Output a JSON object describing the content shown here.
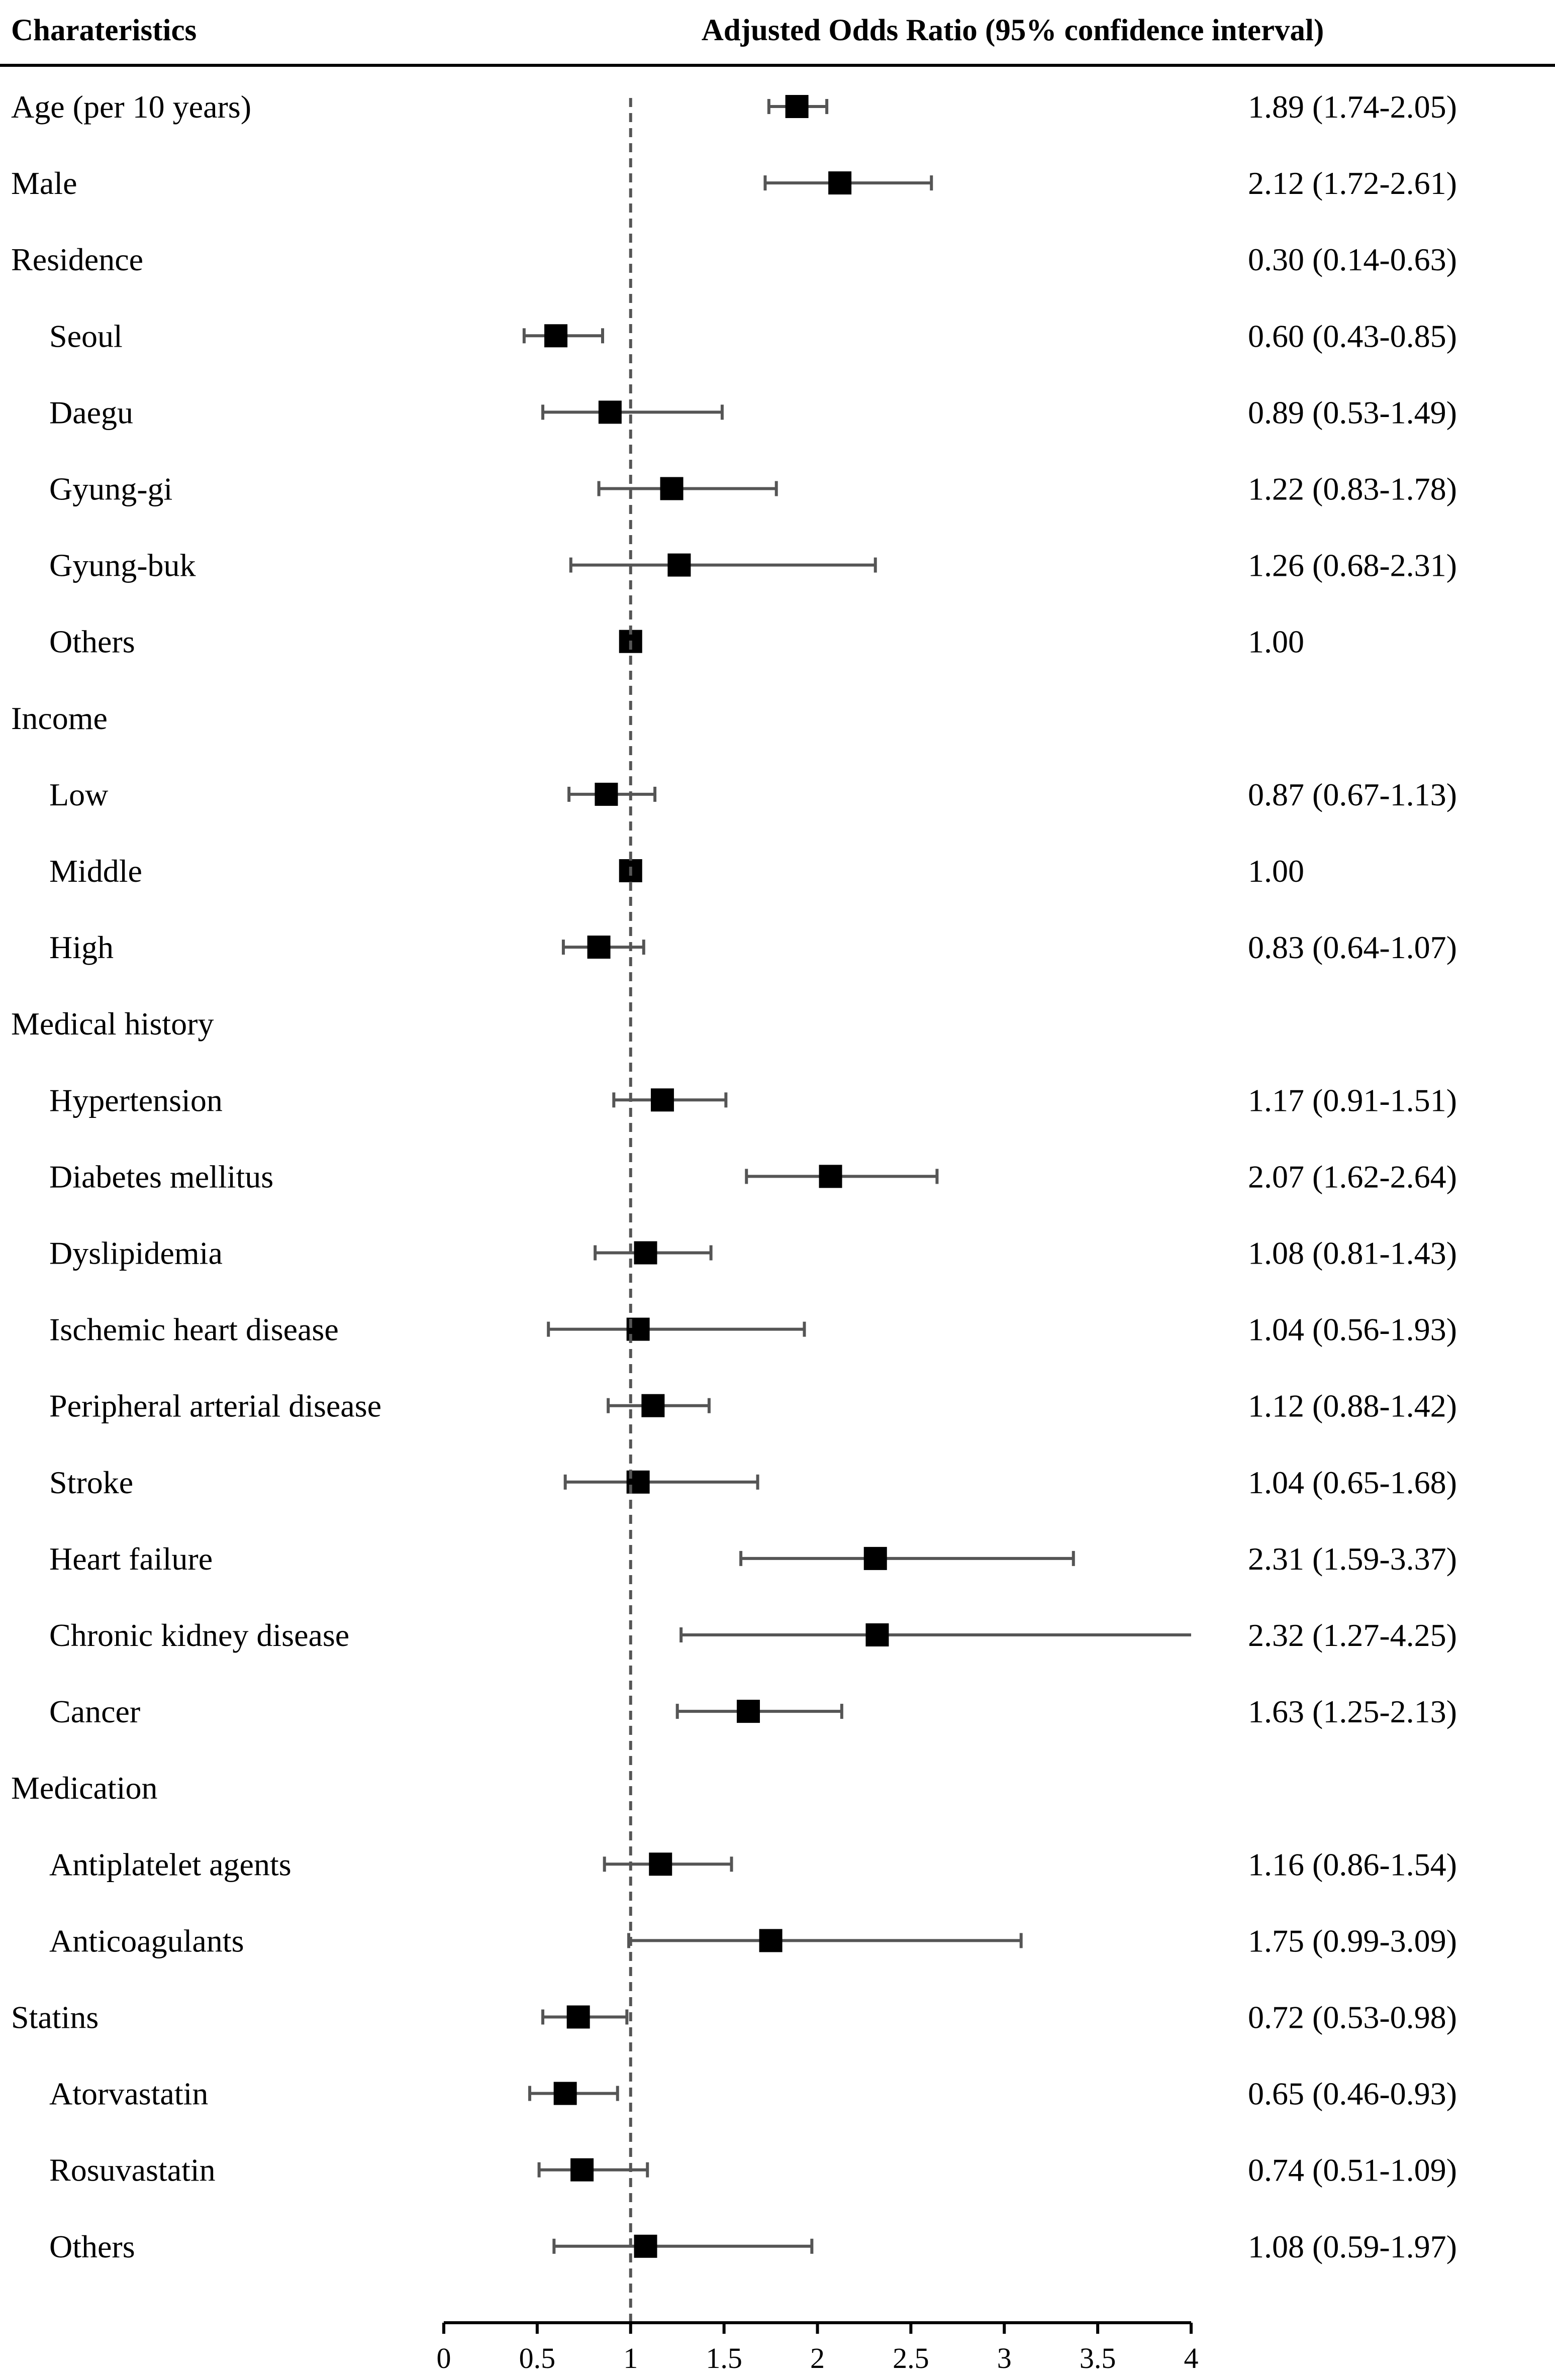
{
  "chart_data": {
    "type": "forest",
    "header": {
      "characteristics": "Charateristics",
      "ratio": "Adjusted Odds Ratio (95% confidence interval)"
    },
    "reference_value": 1,
    "xlim": [
      0,
      4
    ],
    "xticks": [
      "0",
      "0.5",
      "1",
      "1.5",
      "2",
      "2.5",
      "3",
      "3.5",
      "4"
    ],
    "rows": [
      {
        "label": "Age (per 10 years)",
        "indent": 0,
        "or": 1.89,
        "lo": 1.74,
        "hi": 2.05,
        "text": "1.89 (1.74-2.05)"
      },
      {
        "label": "Male",
        "indent": 0,
        "or": 2.12,
        "lo": 1.72,
        "hi": 2.61,
        "text": "2.12 (1.72-2.61)"
      },
      {
        "label": "Residence",
        "indent": 0,
        "or": null,
        "lo": null,
        "hi": null,
        "text": "0.30 (0.14-0.63)"
      },
      {
        "label": "Seoul",
        "indent": 1,
        "or": 0.6,
        "lo": 0.43,
        "hi": 0.85,
        "text": "0.60 (0.43-0.85)"
      },
      {
        "label": "Daegu",
        "indent": 1,
        "or": 0.89,
        "lo": 0.53,
        "hi": 1.49,
        "text": "0.89 (0.53-1.49)"
      },
      {
        "label": "Gyung-gi",
        "indent": 1,
        "or": 1.22,
        "lo": 0.83,
        "hi": 1.78,
        "text": "1.22 (0.83-1.78)"
      },
      {
        "label": "Gyung-buk",
        "indent": 1,
        "or": 1.26,
        "lo": 0.68,
        "hi": 2.31,
        "text": "1.26 (0.68-2.31)"
      },
      {
        "label": "Others",
        "indent": 1,
        "or": 1.0,
        "lo": null,
        "hi": null,
        "text": "1.00"
      },
      {
        "label": "Income",
        "indent": 0,
        "or": null,
        "lo": null,
        "hi": null,
        "text": ""
      },
      {
        "label": "Low",
        "indent": 1,
        "or": 0.87,
        "lo": 0.67,
        "hi": 1.13,
        "text": "0.87 (0.67-1.13)"
      },
      {
        "label": "Middle",
        "indent": 1,
        "or": 1.0,
        "lo": null,
        "hi": null,
        "text": "1.00"
      },
      {
        "label": "High",
        "indent": 1,
        "or": 0.83,
        "lo": 0.64,
        "hi": 1.07,
        "text": "0.83 (0.64-1.07)"
      },
      {
        "label": "Medical history",
        "indent": 0,
        "or": null,
        "lo": null,
        "hi": null,
        "text": ""
      },
      {
        "label": "Hypertension",
        "indent": 1,
        "or": 1.17,
        "lo": 0.91,
        "hi": 1.51,
        "text": "1.17 (0.91-1.51)"
      },
      {
        "label": "Diabetes mellitus",
        "indent": 1,
        "or": 2.07,
        "lo": 1.62,
        "hi": 2.64,
        "text": "2.07 (1.62-2.64)"
      },
      {
        "label": "Dyslipidemia",
        "indent": 1,
        "or": 1.08,
        "lo": 0.81,
        "hi": 1.43,
        "text": "1.08 (0.81-1.43)"
      },
      {
        "label": "Ischemic heart disease",
        "indent": 1,
        "or": 1.04,
        "lo": 0.56,
        "hi": 1.93,
        "text": "1.04 (0.56-1.93)"
      },
      {
        "label": "Peripheral arterial disease",
        "indent": 1,
        "or": 1.12,
        "lo": 0.88,
        "hi": 1.42,
        "text": "1.12 (0.88-1.42)"
      },
      {
        "label": "Stroke",
        "indent": 1,
        "or": 1.04,
        "lo": 0.65,
        "hi": 1.68,
        "text": "1.04 (0.65-1.68)"
      },
      {
        "label": "Heart failure",
        "indent": 1,
        "or": 2.31,
        "lo": 1.59,
        "hi": 3.37,
        "text": "2.31 (1.59-3.37)"
      },
      {
        "label": "Chronic kidney disease",
        "indent": 1,
        "or": 2.32,
        "lo": 1.27,
        "hi": 4.25,
        "text": "2.32 (1.27-4.25)"
      },
      {
        "label": "Cancer",
        "indent": 1,
        "or": 1.63,
        "lo": 1.25,
        "hi": 2.13,
        "text": "1.63 (1.25-2.13)"
      },
      {
        "label": "Medication",
        "indent": 0,
        "or": null,
        "lo": null,
        "hi": null,
        "text": ""
      },
      {
        "label": "Antiplatelet agents",
        "indent": 1,
        "or": 1.16,
        "lo": 0.86,
        "hi": 1.54,
        "text": "1.16 (0.86-1.54)"
      },
      {
        "label": "Anticoagulants",
        "indent": 1,
        "or": 1.75,
        "lo": 0.99,
        "hi": 3.09,
        "text": "1.75 (0.99-3.09)"
      },
      {
        "label": "Statins",
        "indent": 0,
        "or": 0.72,
        "lo": 0.53,
        "hi": 0.98,
        "text": "0.72 (0.53-0.98)"
      },
      {
        "label": "Atorvastatin",
        "indent": 1,
        "or": 0.65,
        "lo": 0.46,
        "hi": 0.93,
        "text": "0.65 (0.46-0.93)"
      },
      {
        "label": "Rosuvastatin",
        "indent": 1,
        "or": 0.74,
        "lo": 0.51,
        "hi": 1.09,
        "text": "0.74 (0.51-1.09)"
      },
      {
        "label": "Others",
        "indent": 1,
        "or": 1.08,
        "lo": 0.59,
        "hi": 1.97,
        "text": "1.08 (0.59-1.97)"
      }
    ]
  }
}
